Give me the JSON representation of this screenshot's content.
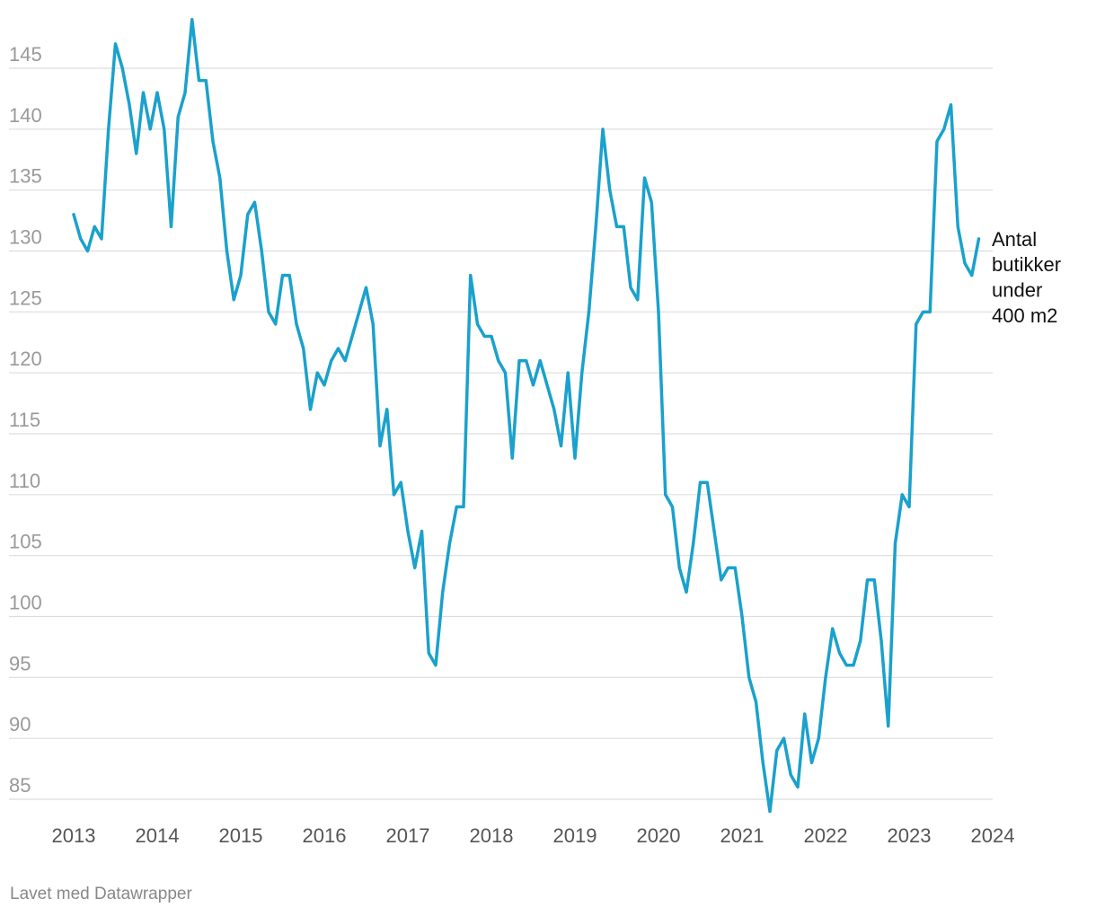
{
  "chart_data": {
    "type": "line",
    "title": "",
    "xlabel": "",
    "ylabel": "",
    "xlim": [
      2013,
      2024
    ],
    "ylim": [
      84,
      149
    ],
    "xticks": [
      "2013",
      "2014",
      "2015",
      "2016",
      "2017",
      "2018",
      "2019",
      "2020",
      "2021",
      "2022",
      "2023",
      "2024"
    ],
    "yticks": [
      "145",
      "140",
      "135",
      "130",
      "125",
      "120",
      "115",
      "110",
      "105",
      "100",
      "95",
      "90",
      "85"
    ],
    "grid": true,
    "series": [
      {
        "name": "Antal butikker under 400 m2",
        "label_lines": [
          "Antal",
          "butikker",
          "under",
          "400 m2"
        ],
        "color": "#1aa1cc",
        "start": 2013,
        "step_months": 1,
        "values": [
          133,
          131,
          130,
          132,
          131,
          140,
          147,
          145,
          142,
          138,
          143,
          140,
          143,
          140,
          132,
          141,
          143,
          149,
          144,
          144,
          139,
          136,
          130,
          126,
          128,
          133,
          134,
          130,
          125,
          124,
          128,
          128,
          124,
          122,
          117,
          120,
          119,
          121,
          122,
          121,
          123,
          125,
          127,
          124,
          114,
          117,
          110,
          111,
          107,
          104,
          107,
          97,
          96,
          102,
          106,
          109,
          109,
          128,
          124,
          123,
          123,
          121,
          120,
          113,
          121,
          121,
          119,
          121,
          119,
          117,
          114,
          120,
          113,
          120,
          125,
          132,
          140,
          135,
          132,
          132,
          127,
          126,
          136,
          134,
          125,
          110,
          109,
          104,
          102,
          106,
          111,
          111,
          107,
          103,
          104,
          104,
          100,
          95,
          93,
          88,
          84,
          89,
          90,
          87,
          86,
          92,
          88,
          90,
          95,
          99,
          97,
          96,
          96,
          98,
          103,
          103,
          98,
          91,
          106,
          110,
          109,
          124,
          125,
          125,
          139,
          140,
          142,
          132,
          129,
          128,
          131
        ]
      }
    ]
  },
  "footer": {
    "credit": "Lavet med Datawrapper"
  }
}
